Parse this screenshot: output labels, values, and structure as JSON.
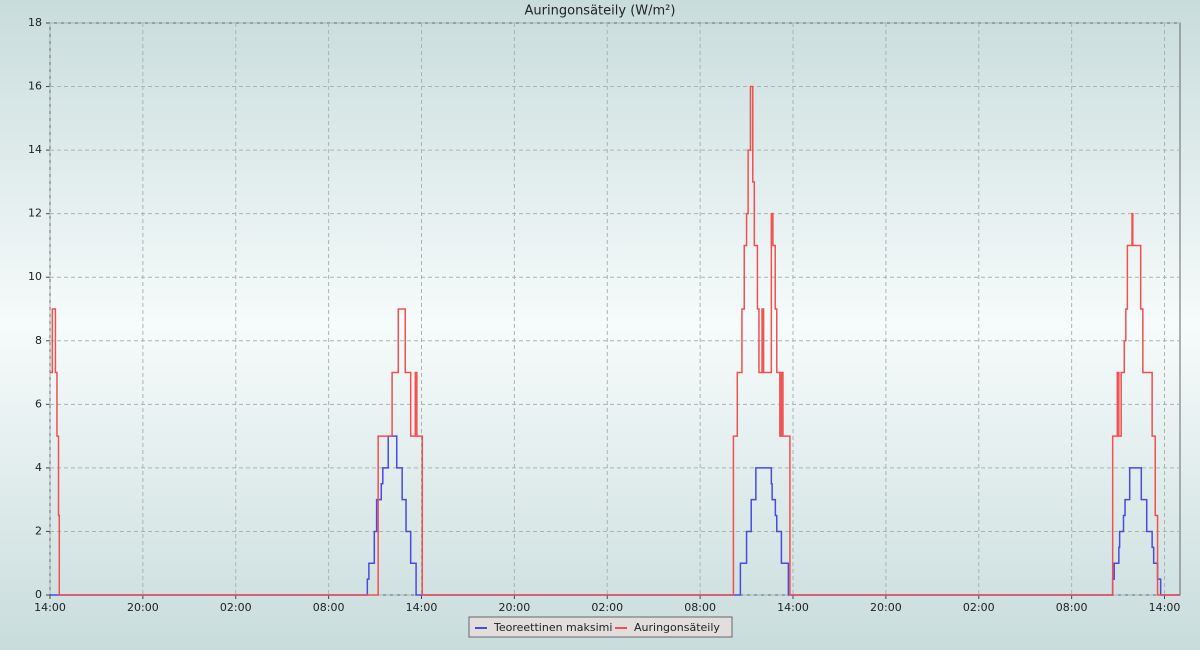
{
  "chart_data": {
    "type": "step",
    "title": "Auringonsäteily (W/m²)",
    "xlim": [
      0,
      73
    ],
    "xticks": [
      {
        "value": 0,
        "label": "14:00"
      },
      {
        "value": 6,
        "label": "20:00"
      },
      {
        "value": 12,
        "label": "02:00"
      },
      {
        "value": 18,
        "label": "08:00"
      },
      {
        "value": 24,
        "label": "14:00"
      },
      {
        "value": 30,
        "label": "20:00"
      },
      {
        "value": 36,
        "label": "02:00"
      },
      {
        "value": 42,
        "label": "08:00"
      },
      {
        "value": 48,
        "label": "14:00"
      },
      {
        "value": 54,
        "label": "20:00"
      },
      {
        "value": 60,
        "label": "02:00"
      },
      {
        "value": 66,
        "label": "08:00"
      },
      {
        "value": 72,
        "label": "14:00"
      }
    ],
    "ylim": [
      0,
      18
    ],
    "yticks": [
      0,
      2,
      4,
      6,
      8,
      10,
      12,
      14,
      16,
      18
    ],
    "grid": true,
    "legend": "bottom",
    "series": [
      {
        "name": "Teoreettinen maksimi",
        "color": "#4a4ae0",
        "x": [
          0,
          20.5,
          20.6,
          20.95,
          21.1,
          21.4,
          21.5,
          21.85,
          22.4,
          22.75,
          23.0,
          23.3,
          23.65,
          44.6,
          45.0,
          45.3,
          45.6,
          46.6,
          46.65,
          46.86,
          46.95,
          47.25,
          47.7,
          68.65,
          68.75,
          69.05,
          69.1,
          69.35,
          69.45,
          69.75,
          70.5,
          70.85,
          71.2,
          71.3,
          71.55,
          71.75
        ],
        "values": [
          0,
          0.5,
          1,
          2,
          3,
          3.5,
          4,
          5,
          4,
          3,
          2,
          1,
          0,
          1,
          2,
          3,
          4,
          3.5,
          3,
          2.5,
          2,
          1,
          0,
          0.5,
          1,
          1.5,
          2,
          2.5,
          3,
          4,
          3,
          2,
          1.5,
          1,
          0.5,
          0
        ]
      },
      {
        "name": "Auringonsäteily",
        "color": "#f05050",
        "x": [
          0,
          0.15,
          0.35,
          0.45,
          0.55,
          0.6,
          21.2,
          22.1,
          22.5,
          22.95,
          23.3,
          23.6,
          23.7,
          24.05,
          44.15,
          44.4,
          44.7,
          44.85,
          45.0,
          45.1,
          45.25,
          45.4,
          45.5,
          45.7,
          45.8,
          46.0,
          46.1,
          46.6,
          46.7,
          46.85,
          46.95,
          47.15,
          47.25,
          47.35,
          47.8,
          68.65,
          68.95,
          69.05,
          69.2,
          69.4,
          69.5,
          69.6,
          69.9,
          69.95,
          70.46,
          70.6,
          71.2,
          71.4,
          71.55
        ],
        "values": [
          7,
          9,
          7,
          5,
          2.5,
          0,
          5,
          7,
          9,
          7,
          5,
          7,
          5,
          0,
          5,
          7,
          9,
          11,
          12,
          14,
          16,
          13,
          11,
          9,
          7,
          9,
          7,
          12,
          11,
          9,
          7,
          5,
          7,
          5,
          0,
          5,
          7,
          5,
          7,
          8,
          9,
          11,
          12,
          11,
          9,
          7,
          5,
          2.5,
          0
        ]
      }
    ]
  }
}
